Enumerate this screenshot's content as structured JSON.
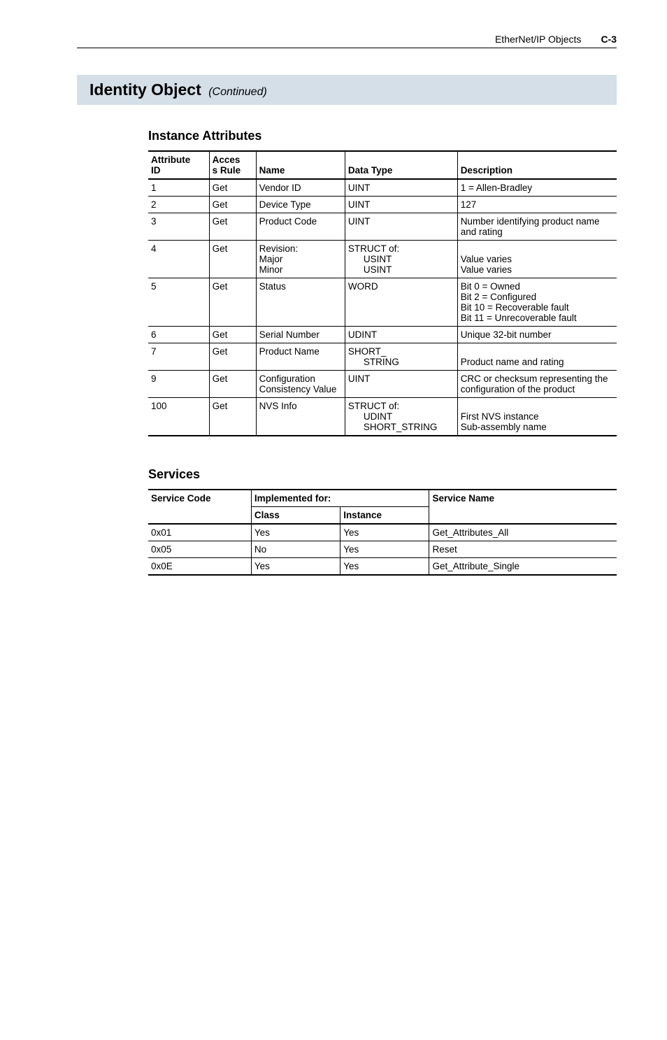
{
  "header": {
    "section_name": "EtherNet/IP Objects",
    "page_number": "C-3"
  },
  "banner": {
    "title": "Identity Object",
    "continued": "(Continued)"
  },
  "instance_attributes": {
    "title": "Instance Attributes",
    "columns": {
      "attr_id_1": "Attribute",
      "attr_id_2": "ID",
      "access_1": "Acces",
      "access_2": "s Rule",
      "name": "Name",
      "data_type": "Data Type",
      "description": "Description"
    },
    "rows": [
      {
        "id": "1",
        "access": "Get",
        "name": "Vendor ID",
        "data_type": [
          "UINT"
        ],
        "data_indent": [
          false
        ],
        "description": [
          "1 = Allen-Bradley"
        ]
      },
      {
        "id": "2",
        "access": "Get",
        "name": "Device Type",
        "data_type": [
          "UINT"
        ],
        "data_indent": [
          false
        ],
        "description": [
          "127"
        ]
      },
      {
        "id": "3",
        "access": "Get",
        "name": "Product Code",
        "data_type": [
          "UINT"
        ],
        "data_indent": [
          false
        ],
        "description": [
          "Number identifying product name and rating"
        ]
      },
      {
        "id": "4",
        "access": "Get",
        "name": "Revision:\nMajor\nMinor",
        "data_type": [
          "STRUCT of:",
          "USINT",
          "USINT"
        ],
        "data_indent": [
          false,
          true,
          true
        ],
        "description": [
          "",
          "Value varies",
          "Value varies"
        ]
      },
      {
        "id": "5",
        "access": "Get",
        "name": "Status",
        "data_type": [
          "WORD"
        ],
        "data_indent": [
          false
        ],
        "description": [
          "Bit 0 = Owned",
          "Bit 2 = Configured",
          "Bit 10 = Recoverable fault",
          "Bit 11 = Unrecoverable fault"
        ]
      },
      {
        "id": "6",
        "access": "Get",
        "name": "Serial Number",
        "data_type": [
          "UDINT"
        ],
        "data_indent": [
          false
        ],
        "description": [
          "Unique 32-bit number"
        ]
      },
      {
        "id": "7",
        "access": "Get",
        "name": "Product Name",
        "data_type": [
          "SHORT_",
          "STRING"
        ],
        "data_indent": [
          false,
          true
        ],
        "description": [
          "",
          "Product name and rating"
        ]
      },
      {
        "id": "9",
        "access": "Get",
        "name": "Configuration Consistency Value",
        "data_type": [
          "UINT"
        ],
        "data_indent": [
          false
        ],
        "description": [
          "CRC or checksum representing the configuration of the product"
        ]
      },
      {
        "id": "100",
        "access": "Get",
        "name": "NVS Info",
        "data_type": [
          "STRUCT of:",
          "UDINT",
          "SHORT_STRING"
        ],
        "data_indent": [
          false,
          true,
          true
        ],
        "description": [
          "",
          "First NVS instance",
          "Sub-assembly name"
        ]
      }
    ]
  },
  "services": {
    "title": "Services",
    "columns": {
      "service_code": "Service Code",
      "implemented_for": "Implemented for:",
      "class": "Class",
      "instance": "Instance",
      "service_name": "Service Name"
    },
    "rows": [
      {
        "code": "0x01",
        "class": "Yes",
        "instance": "Yes",
        "name": "Get_Attributes_All"
      },
      {
        "code": "0x05",
        "class": "No",
        "instance": "Yes",
        "name": "Reset"
      },
      {
        "code": "0x0E",
        "class": "Yes",
        "instance": "Yes",
        "name": "Get_Attribute_Single"
      }
    ]
  }
}
